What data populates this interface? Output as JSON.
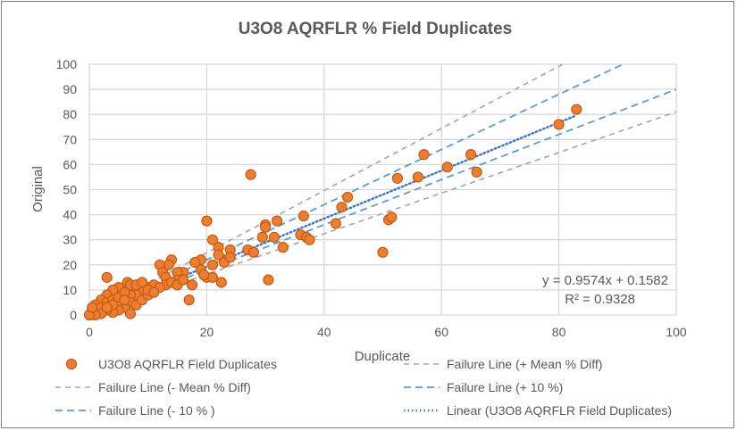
{
  "chart_data": {
    "type": "scatter",
    "title": "U3O8 AQRFLR %  Field Duplicates",
    "xlabel": "Duplicate",
    "ylabel": "Original",
    "xlim": [
      0,
      100
    ],
    "ylim": [
      0,
      100
    ],
    "xticks": [
      0,
      20,
      40,
      60,
      80,
      100
    ],
    "yticks": [
      0,
      10,
      20,
      30,
      40,
      50,
      60,
      70,
      80,
      90,
      100
    ],
    "grid": true,
    "legend_placement": "bottom",
    "trendline": {
      "equation": "y = 0.9574x + 0.1582",
      "r2": "R² = 0.9328",
      "slope": 0.9574,
      "intercept": 0.1582
    },
    "colors": {
      "points": "#ED7D31",
      "points_border": "#C55A11",
      "mean_lines": "#A5A5A5",
      "ten_pct_lines": "#5B9BD5",
      "trend": "#4472C4"
    },
    "series": [
      {
        "name": "U3O8 AQRFLR Field Duplicates",
        "kind": "points",
        "points": [
          [
            27.5,
            56
          ],
          [
            57,
            64
          ],
          [
            65,
            64
          ],
          [
            61,
            59
          ],
          [
            66,
            57
          ],
          [
            56,
            55
          ],
          [
            52.5,
            54.5
          ],
          [
            80,
            76
          ],
          [
            83,
            82
          ],
          [
            44,
            47
          ],
          [
            43,
            43
          ],
          [
            42,
            36.5
          ],
          [
            36.5,
            39.5
          ],
          [
            36,
            32
          ],
          [
            37,
            31
          ],
          [
            37.5,
            30
          ],
          [
            33,
            27
          ],
          [
            32,
            37.5
          ],
          [
            30,
            36
          ],
          [
            30,
            35
          ],
          [
            31.5,
            31
          ],
          [
            29.5,
            31
          ],
          [
            27,
            26
          ],
          [
            28,
            25
          ],
          [
            30.5,
            14
          ],
          [
            50,
            25
          ],
          [
            51,
            38
          ],
          [
            51.5,
            39
          ],
          [
            23,
            22
          ],
          [
            20,
            37.5
          ],
          [
            21,
            30
          ],
          [
            22,
            27
          ],
          [
            22,
            24
          ],
          [
            23,
            21
          ],
          [
            24,
            26
          ],
          [
            24,
            23
          ],
          [
            21,
            20
          ],
          [
            20,
            15
          ],
          [
            21,
            15
          ],
          [
            22.5,
            13
          ],
          [
            17,
            6
          ],
          [
            17.5,
            12
          ],
          [
            19,
            22
          ],
          [
            19,
            18
          ],
          [
            19.5,
            16
          ],
          [
            18,
            21
          ],
          [
            16,
            17
          ],
          [
            15,
            17
          ],
          [
            14,
            22
          ],
          [
            13.5,
            20
          ],
          [
            12,
            20
          ],
          [
            12.5,
            17
          ],
          [
            13,
            15
          ],
          [
            15,
            14
          ],
          [
            13,
            12
          ],
          [
            11,
            10
          ],
          [
            10,
            11
          ],
          [
            9,
            9
          ],
          [
            8,
            8
          ],
          [
            7,
            8
          ],
          [
            6.5,
            13
          ],
          [
            7,
            12
          ],
          [
            5,
            11
          ],
          [
            4,
            10
          ],
          [
            3,
            15
          ],
          [
            3,
            8
          ],
          [
            2,
            6
          ],
          [
            1,
            4
          ],
          [
            1,
            2
          ],
          [
            0.5,
            1
          ],
          [
            0.2,
            0.5
          ],
          [
            2,
            3
          ],
          [
            3,
            5
          ],
          [
            4,
            6
          ],
          [
            5,
            7
          ],
          [
            6,
            9
          ],
          [
            7,
            5
          ],
          [
            8,
            4
          ],
          [
            9,
            6
          ],
          [
            10,
            8
          ],
          [
            11,
            12
          ],
          [
            12,
            11
          ],
          [
            6,
            3
          ],
          [
            7,
            0.5
          ],
          [
            5,
            2
          ],
          [
            4,
            1
          ],
          [
            3,
            2
          ],
          [
            2,
            0.5
          ],
          [
            1,
            0
          ],
          [
            0,
            0
          ],
          [
            0.5,
            3
          ],
          [
            8,
            12
          ],
          [
            9,
            13
          ],
          [
            10,
            10
          ],
          [
            11,
            9
          ],
          [
            14,
            13
          ],
          [
            15,
            12
          ],
          [
            16,
            14
          ],
          [
            6,
            6
          ],
          [
            4,
            4
          ],
          [
            3,
            3
          ]
        ]
      },
      {
        "name": "Failure Line (+ Mean % Diff)",
        "kind": "line",
        "slope": 1.24
      },
      {
        "name": "Failure Line (- Mean % Diff)",
        "kind": "line",
        "slope": 0.81
      },
      {
        "name": "Failure Line (+ 10 %)",
        "kind": "line",
        "slope": 1.1
      },
      {
        "name": "Failure Line (- 10 % )",
        "kind": "line",
        "slope": 0.9
      },
      {
        "name": "Linear (U3O8 AQRFLR Field Duplicates)",
        "kind": "trend",
        "xmax": 83
      }
    ]
  }
}
